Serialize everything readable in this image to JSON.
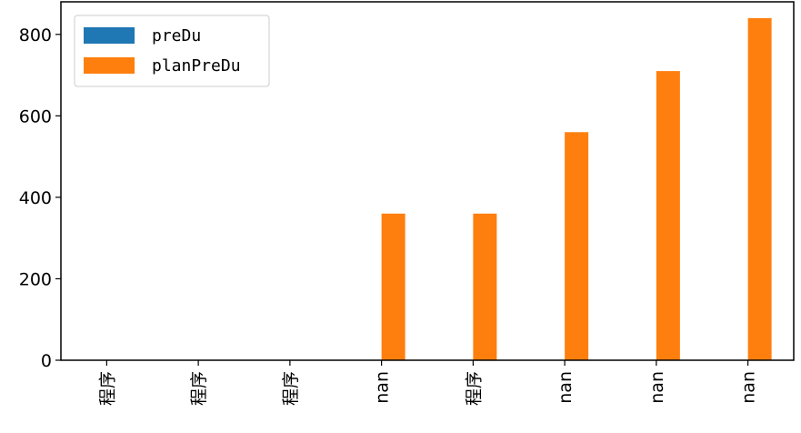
{
  "chart_data": {
    "type": "bar",
    "categories": [
      "程序",
      "程序",
      "程序",
      "nan",
      "程序",
      "nan",
      "nan",
      "nan"
    ],
    "top_labels": [
      "",
      "",
      "",
      "",
      "",
      "",
      "",
      ""
    ],
    "series": [
      {
        "name": "preDu",
        "color": "#1f77b4",
        "values": [
          0,
          0,
          0,
          0,
          0,
          0,
          0,
          0
        ]
      },
      {
        "name": "planPreDu",
        "color": "#ff7f0e",
        "values": [
          0,
          0,
          0,
          360,
          360,
          560,
          710,
          840
        ]
      }
    ],
    "yticks": [
      0,
      200,
      400,
      600,
      800
    ],
    "ylim": [
      0,
      880
    ],
    "title": "",
    "xlabel": "",
    "ylabel": "",
    "legend": "upper-left",
    "grid": false
  }
}
